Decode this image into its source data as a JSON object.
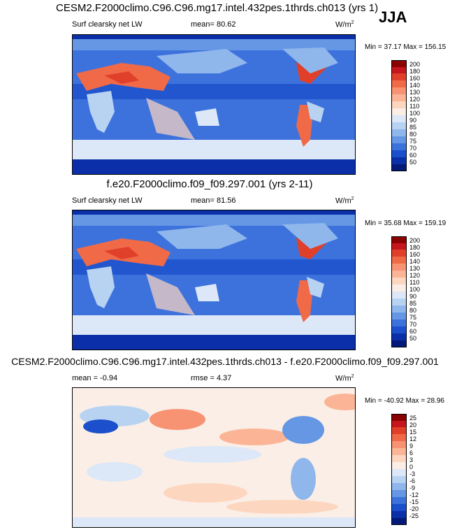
{
  "season": "JJA",
  "panels": [
    {
      "title": "CESM2.F2000climo.C96.C96.mg17.intel.432pes.1thrds.ch013 (yrs 1)",
      "variable": "Surf clearsky net LW",
      "mean_label": "mean=  80.62",
      "units": "W/m",
      "units_exp": "2",
      "minmax": "Min =  37.17 Max = 156.15"
    },
    {
      "title": "f.e20.F2000climo.f09_f09.297.001 (yrs 2-11)",
      "variable": "Surf clearsky net LW",
      "mean_label": "mean=  81.56",
      "units": "W/m",
      "units_exp": "2",
      "minmax": "Min =  35.68 Max = 159.19"
    },
    {
      "title": "CESM2.F2000climo.C96.C96.mg17.intel.432pes.1thrds.ch013 - f.e20.F2000climo.f09_f09.297.001",
      "variable": "mean =  -0.94",
      "rmse_label": "rmse =   4.37",
      "units": "W/m",
      "units_exp": "2",
      "minmax": "Min = -40.92 Max =  28.96"
    }
  ],
  "colorbars": {
    "abs": {
      "levels": [
        "200",
        "180",
        "160",
        "140",
        "130",
        "120",
        "110",
        "100",
        "90",
        "85",
        "80",
        "75",
        "70",
        "60",
        "50"
      ],
      "colors": [
        "#8b0000",
        "#c4161c",
        "#e0402a",
        "#f06a48",
        "#f79272",
        "#fbb596",
        "#fdd6c0",
        "#faeee6",
        "#dce8f7",
        "#b8d3f2",
        "#8fb7ec",
        "#6597e5",
        "#3d72dc",
        "#1b4fcc",
        "#0a2fa8",
        "#041a7a"
      ]
    },
    "diff": {
      "levels": [
        "25",
        "20",
        "15",
        "12",
        "9",
        "6",
        "3",
        "0",
        "-3",
        "-6",
        "-9",
        "-12",
        "-15",
        "-20",
        "-25"
      ],
      "colors": [
        "#8b0000",
        "#c4161c",
        "#e0402a",
        "#f06a48",
        "#f79272",
        "#fbb596",
        "#fdd6c0",
        "#faeee6",
        "#dce8f7",
        "#b8d3f2",
        "#8fb7ec",
        "#6597e5",
        "#3d72dc",
        "#1b4fcc",
        "#0a2fa8",
        "#041a7a"
      ]
    }
  }
}
